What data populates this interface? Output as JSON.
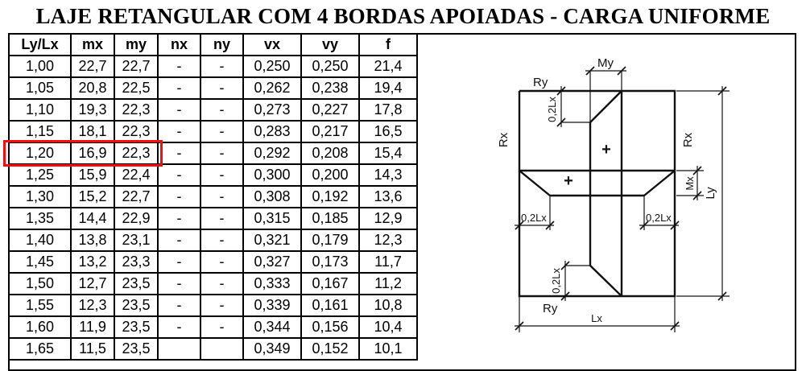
{
  "title": "LAJE RETANGULAR COM 4 BORDAS APOIADAS - CARGA UNIFORME",
  "table": {
    "headers": [
      "Ly/Lx",
      "mx",
      "my",
      "nx",
      "ny",
      "vx",
      "vy",
      "f"
    ],
    "rows": [
      [
        "1,00",
        "22,7",
        "22,7",
        "-",
        "-",
        "0,250",
        "0,250",
        "21,4"
      ],
      [
        "1,05",
        "20,8",
        "22,5",
        "-",
        "-",
        "0,262",
        "0,238",
        "19,4"
      ],
      [
        "1,10",
        "19,3",
        "22,3",
        "-",
        "-",
        "0,273",
        "0,227",
        "17,8"
      ],
      [
        "1,15",
        "18,1",
        "22,3",
        "-",
        "-",
        "0,283",
        "0,217",
        "16,5"
      ],
      [
        "1,20",
        "16,9",
        "22,3",
        "-",
        "-",
        "0,292",
        "0,208",
        "15,4"
      ],
      [
        "1,25",
        "15,9",
        "22,4",
        "-",
        "-",
        "0,300",
        "0,200",
        "14,3"
      ],
      [
        "1,30",
        "15,2",
        "22,7",
        "-",
        "-",
        "0,308",
        "0,192",
        "13,6"
      ],
      [
        "1,35",
        "14,4",
        "22,9",
        "-",
        "-",
        "0,315",
        "0,185",
        "12,9"
      ],
      [
        "1,40",
        "13,8",
        "23,1",
        "-",
        "-",
        "0,321",
        "0,179",
        "12,3"
      ],
      [
        "1,45",
        "13,2",
        "23,3",
        "-",
        "-",
        "0,327",
        "0,173",
        "11,7"
      ],
      [
        "1,50",
        "12,7",
        "23,5",
        "-",
        "-",
        "0,333",
        "0,167",
        "11,2"
      ],
      [
        "1,55",
        "12,3",
        "23,5",
        "-",
        "-",
        "0,339",
        "0,161",
        "10,8"
      ],
      [
        "1,60",
        "11,9",
        "23,5",
        "-",
        "-",
        "0,344",
        "0,156",
        "10,4"
      ],
      [
        "1,65",
        "11,5",
        "23,5",
        "",
        "",
        "0,349",
        "0,152",
        "10,1"
      ]
    ],
    "highlight": {
      "row_value": "1,20",
      "columns_covered": [
        "Ly/Lx",
        "mx",
        "my"
      ],
      "color": "#fb0b0b"
    }
  },
  "diagram": {
    "labels": {
      "my": "My",
      "ry_top": "Ry",
      "ry_bottom": "Ry",
      "rx_left": "Rx",
      "rx_right": "Rx",
      "mx": "Mx",
      "ly": "Ly",
      "lx": "Lx",
      "dim_02lx_top": "0,2Lx",
      "dim_02lx_left": "0,2Lx",
      "dim_02lx_right": "0,2Lx",
      "dim_02lx_bottom": "0,2Lx",
      "plus_center": "+",
      "plus_mid_left": "+"
    }
  }
}
